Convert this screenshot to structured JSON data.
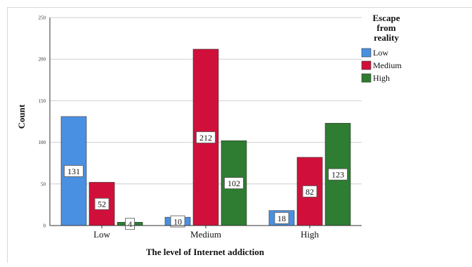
{
  "chart_data": {
    "type": "bar",
    "xlabel": "The level of Internet addiction",
    "ylabel": "Count",
    "ylim": [
      0,
      250
    ],
    "yticks": [
      0,
      50,
      100,
      150,
      200,
      250
    ],
    "grid": true,
    "legend_position": "top-right",
    "legend_title": [
      "Escape",
      "from",
      "reality"
    ],
    "categories": [
      "Low",
      "Medium",
      "High"
    ],
    "series": [
      {
        "name": "Low",
        "color": "#4a90e2",
        "values": [
          131,
          10,
          18
        ]
      },
      {
        "name": "Medium",
        "color": "#d0103a",
        "values": [
          52,
          212,
          82
        ]
      },
      {
        "name": "High",
        "color": "#2e7d32",
        "values": [
          4,
          102,
          123
        ]
      }
    ]
  }
}
